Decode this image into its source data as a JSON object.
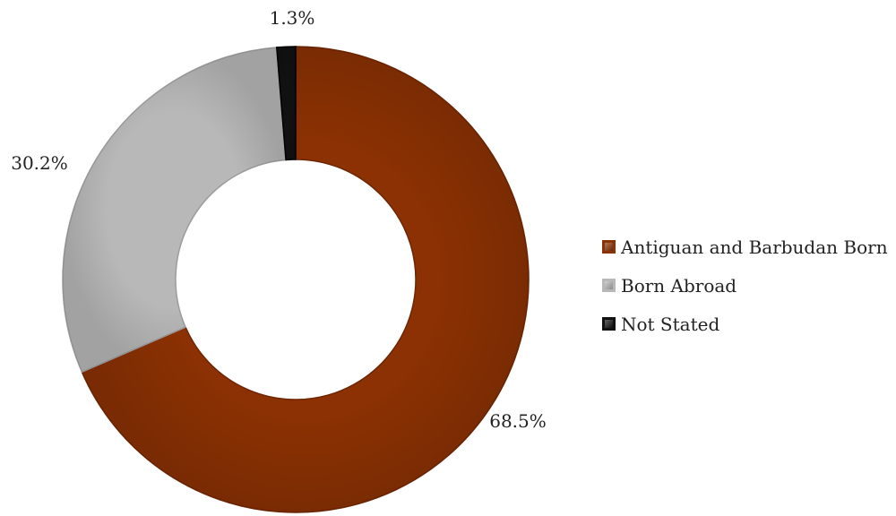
{
  "chart_data": {
    "type": "pie",
    "variant": "donut",
    "categories": [
      "Antiguan and Barbudan Born",
      "Born Abroad",
      "Not Stated"
    ],
    "values": [
      68.5,
      30.2,
      1.3
    ],
    "labels": [
      "68.5%",
      "30.2%",
      "1.3%"
    ],
    "colors": [
      "#8B3103",
      "#B8B8B8",
      "#111111"
    ],
    "legend_position": "right",
    "title": ""
  }
}
